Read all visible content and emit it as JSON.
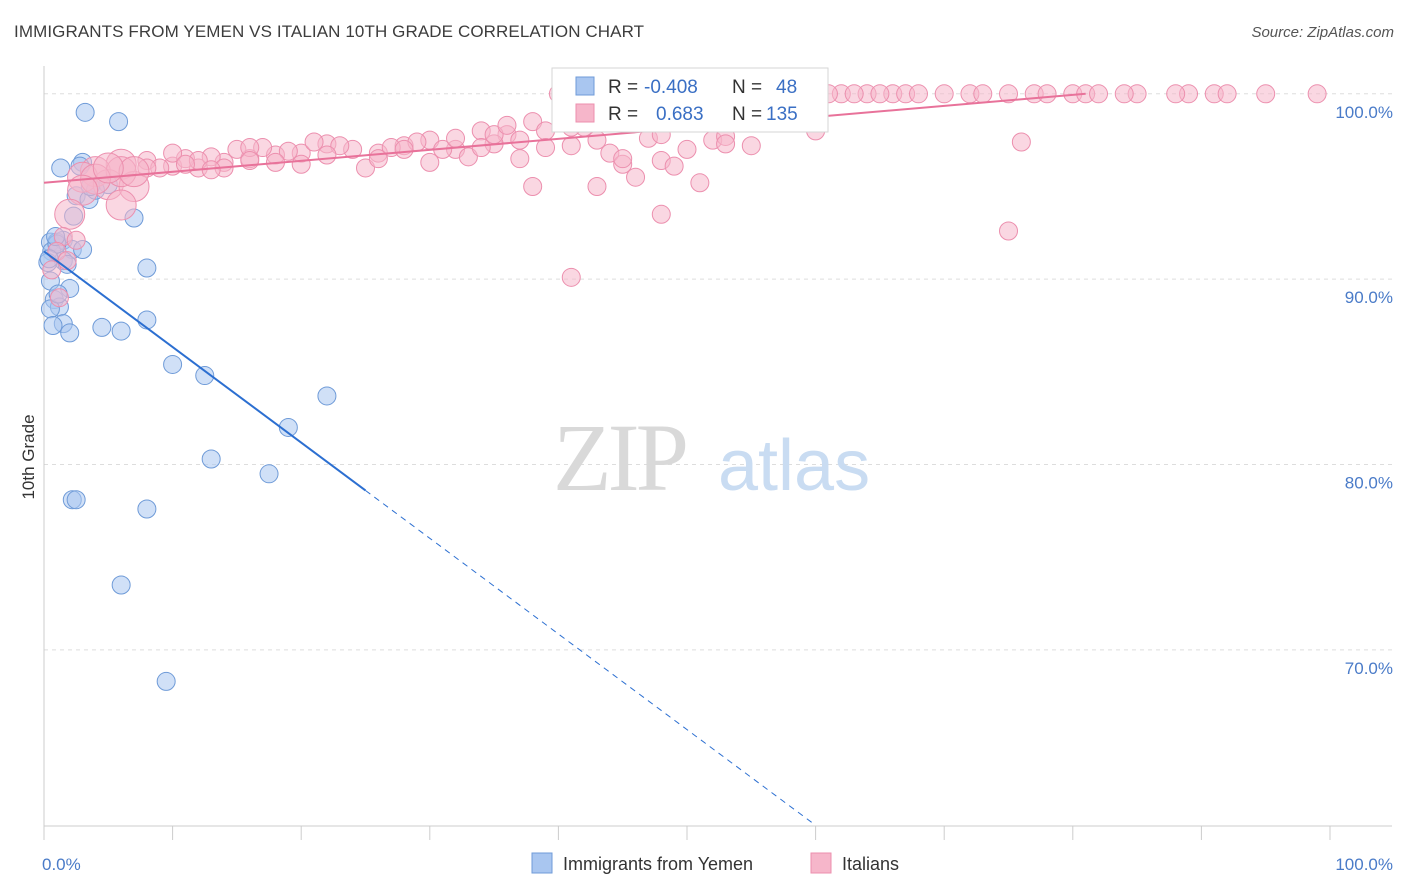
{
  "title": "IMMIGRANTS FROM YEMEN VS ITALIAN 10TH GRADE CORRELATION CHART",
  "source": "Source: ZipAtlas.com",
  "watermark": {
    "zip": "ZIP",
    "atlas": "atlas"
  },
  "colors": {
    "yemen": "#a9c6f0",
    "yemen_stroke": "#6f9bd8",
    "yemen_line": "#2c6fd1",
    "italians": "#f6b6ca",
    "italians_stroke": "#ec8fae",
    "italians_line": "#e8729a",
    "grid": "#dddddd",
    "axis_text": "#4a7bc8"
  },
  "chart_data": {
    "type": "scatter",
    "title": "IMMIGRANTS FROM YEMEN VS ITALIAN 10TH GRADE CORRELATION CHART",
    "xlabel": "",
    "ylabel": "10th Grade",
    "xlim": [
      0,
      100
    ],
    "ylim": [
      60.5,
      101.5
    ],
    "x_tick_labels": [
      {
        "value": 0,
        "label": "0.0%"
      },
      {
        "value": 100,
        "label": "100.0%"
      }
    ],
    "y_tick_labels": [
      {
        "value": 100,
        "label": "100.0%"
      },
      {
        "value": 90,
        "label": "90.0%"
      },
      {
        "value": 80,
        "label": "80.0%"
      },
      {
        "value": 70,
        "label": "70.0%"
      }
    ],
    "legend": {
      "rows": [
        {
          "series": "Immigrants from Yemen",
          "r_label": "R =",
          "r_value": "-0.408",
          "n_label": "N =",
          "n_value": "48"
        },
        {
          "series": "Italians",
          "r_label": "R =",
          "r_value": "0.683",
          "n_label": "N =",
          "n_value": "135"
        }
      ]
    },
    "series": [
      {
        "name": "Immigrants from Yemen",
        "trend": {
          "x0": 0,
          "y0": 91.5,
          "x1": 25,
          "y1": 78.6,
          "dash_to_x": 60
        },
        "points": [
          [
            3.2,
            99.0
          ],
          [
            5.8,
            98.5
          ],
          [
            3.0,
            96.3
          ],
          [
            1.3,
            96.0
          ],
          [
            5.0,
            95.1
          ],
          [
            2.5,
            94.5
          ],
          [
            3.5,
            94.3
          ],
          [
            2.3,
            93.4
          ],
          [
            7.0,
            93.3
          ],
          [
            0.5,
            92.0
          ],
          [
            1.0,
            92.0
          ],
          [
            1.5,
            92.1
          ],
          [
            0.6,
            91.5
          ],
          [
            2.2,
            91.6
          ],
          [
            3.0,
            91.6
          ],
          [
            1.5,
            91.0
          ],
          [
            0.3,
            90.9
          ],
          [
            8.0,
            90.6
          ],
          [
            0.5,
            89.9
          ],
          [
            2.0,
            89.5
          ],
          [
            0.8,
            88.9
          ],
          [
            1.2,
            88.5
          ],
          [
            0.5,
            88.4
          ],
          [
            1.5,
            87.6
          ],
          [
            0.7,
            87.5
          ],
          [
            4.5,
            87.4
          ],
          [
            6.0,
            87.2
          ],
          [
            2.0,
            87.1
          ],
          [
            8.0,
            87.8
          ],
          [
            10.0,
            85.4
          ],
          [
            12.5,
            84.8
          ],
          [
            22.0,
            83.7
          ],
          [
            19.0,
            82.0
          ],
          [
            13.0,
            80.3
          ],
          [
            17.5,
            79.5
          ],
          [
            2.2,
            78.1
          ],
          [
            2.5,
            78.1
          ],
          [
            8.0,
            77.6
          ],
          [
            6.0,
            73.5
          ],
          [
            9.5,
            68.3
          ],
          [
            1.0,
            91.9
          ],
          [
            0.4,
            91.1
          ],
          [
            1.8,
            90.8
          ],
          [
            4.0,
            94.8
          ],
          [
            2.8,
            96.1
          ],
          [
            0.9,
            92.3
          ],
          [
            3.6,
            95.0
          ],
          [
            1.1,
            89.2
          ]
        ]
      },
      {
        "name": "Italians",
        "trend": {
          "x0": 0,
          "y0": 95.2,
          "x1": 81,
          "y1": 100.0
        },
        "points": [
          [
            40,
            100
          ],
          [
            42,
            100
          ],
          [
            44,
            100
          ],
          [
            46,
            100
          ],
          [
            48,
            100
          ],
          [
            50,
            100
          ],
          [
            52,
            100
          ],
          [
            54,
            100
          ],
          [
            56,
            100
          ],
          [
            58,
            100
          ],
          [
            60,
            100
          ],
          [
            62,
            100
          ],
          [
            64,
            100
          ],
          [
            66,
            100
          ],
          [
            67,
            100
          ],
          [
            70,
            100
          ],
          [
            72,
            100
          ],
          [
            75,
            100
          ],
          [
            80,
            100
          ],
          [
            81,
            100
          ],
          [
            82,
            100
          ],
          [
            85,
            100
          ],
          [
            89,
            100
          ],
          [
            91,
            100
          ],
          [
            92,
            100
          ],
          [
            95,
            100
          ],
          [
            99,
            100
          ],
          [
            53,
            100
          ],
          [
            55,
            100
          ],
          [
            57,
            100
          ],
          [
            59,
            100
          ],
          [
            61,
            100
          ],
          [
            63,
            100
          ],
          [
            65,
            100
          ],
          [
            68,
            100
          ],
          [
            73,
            100
          ],
          [
            77,
            100
          ],
          [
            78,
            100
          ],
          [
            84,
            100
          ],
          [
            88,
            100
          ],
          [
            38,
            98.5
          ],
          [
            42,
            98.2
          ],
          [
            43,
            97.5
          ],
          [
            47,
            97.6
          ],
          [
            50,
            97.0
          ],
          [
            55,
            97.2
          ],
          [
            60,
            98.0
          ],
          [
            34,
            98.0
          ],
          [
            36,
            97.8
          ],
          [
            30,
            97.5
          ],
          [
            32,
            97.0
          ],
          [
            28,
            97.2
          ],
          [
            26,
            96.8
          ],
          [
            24,
            97.0
          ],
          [
            22,
            97.3
          ],
          [
            20,
            96.8
          ],
          [
            18,
            96.7
          ],
          [
            16,
            96.5
          ],
          [
            14,
            96.3
          ],
          [
            12,
            96.0
          ],
          [
            10,
            96.1
          ],
          [
            8,
            96.4
          ],
          [
            6,
            96.2
          ],
          [
            4,
            95.8
          ],
          [
            3,
            95.5
          ],
          [
            5,
            95.1
          ],
          [
            7,
            95.0
          ],
          [
            9,
            96.0
          ],
          [
            11,
            96.5
          ],
          [
            13,
            96.6
          ],
          [
            15,
            97.0
          ],
          [
            17,
            97.1
          ],
          [
            19,
            96.9
          ],
          [
            21,
            97.4
          ],
          [
            23,
            97.2
          ],
          [
            25,
            96.0
          ],
          [
            27,
            97.1
          ],
          [
            29,
            97.4
          ],
          [
            31,
            97.0
          ],
          [
            33,
            96.6
          ],
          [
            35,
            97.3
          ],
          [
            37,
            97.5
          ],
          [
            39,
            98.0
          ],
          [
            41,
            97.2
          ],
          [
            44,
            96.8
          ],
          [
            45,
            96.2
          ],
          [
            48,
            97.8
          ],
          [
            52,
            97.5
          ],
          [
            53,
            97.7
          ],
          [
            46,
            95.5
          ],
          [
            38,
            95.0
          ],
          [
            45,
            96.5
          ],
          [
            48,
            96.4
          ],
          [
            49,
            96.1
          ],
          [
            35,
            97.8
          ],
          [
            37,
            96.5
          ],
          [
            32,
            97.6
          ],
          [
            28,
            97.0
          ],
          [
            26,
            96.5
          ],
          [
            22,
            96.7
          ],
          [
            18,
            96.3
          ],
          [
            16,
            97.1
          ],
          [
            14,
            96.0
          ],
          [
            12,
            96.4
          ],
          [
            10,
            96.8
          ],
          [
            8,
            96.0
          ],
          [
            6,
            95.8
          ],
          [
            4,
            95.4
          ],
          [
            3,
            94.8
          ],
          [
            2,
            93.5
          ],
          [
            1.5,
            92.3
          ],
          [
            2.5,
            92.1
          ],
          [
            1,
            91.5
          ],
          [
            1.8,
            91.0
          ],
          [
            6,
            94.0
          ],
          [
            7,
            95.8
          ],
          [
            5,
            96.0
          ],
          [
            43,
            95.0
          ],
          [
            39,
            97.1
          ],
          [
            41,
            98.2
          ],
          [
            36,
            98.3
          ],
          [
            34,
            97.1
          ],
          [
            30,
            96.3
          ],
          [
            20,
            96.2
          ],
          [
            16,
            96.4
          ],
          [
            48,
            93.5
          ],
          [
            51,
            95.2
          ],
          [
            53,
            97.3
          ],
          [
            76,
            97.4
          ],
          [
            75,
            92.6
          ],
          [
            41,
            90.1
          ],
          [
            1.2,
            89.0
          ],
          [
            0.6,
            90.5
          ],
          [
            11,
            96.2
          ],
          [
            13,
            95.9
          ]
        ]
      }
    ]
  }
}
